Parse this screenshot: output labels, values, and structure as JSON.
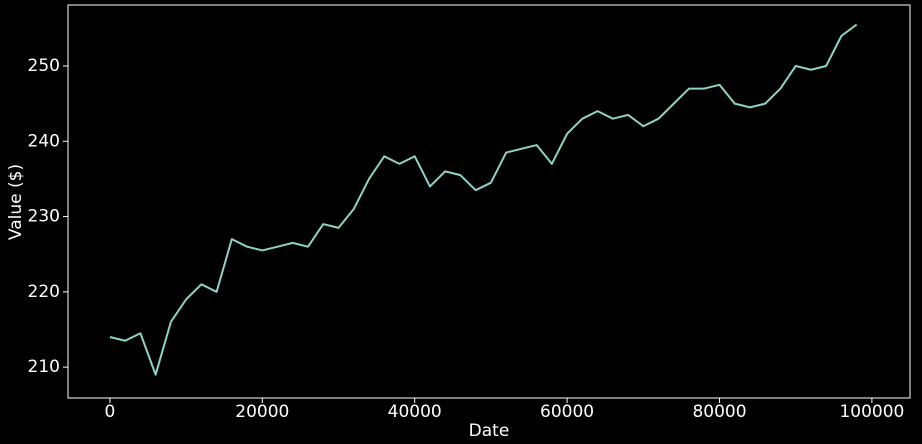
{
  "chart_data": {
    "type": "line",
    "x_label": "Date",
    "y_label": "Value ($)",
    "x": [
      0,
      2000,
      4000,
      6000,
      8000,
      10000,
      12000,
      14000,
      16000,
      18000,
      20000,
      22000,
      24000,
      26000,
      28000,
      30000,
      32000,
      34000,
      36000,
      38000,
      40000,
      42000,
      44000,
      46000,
      48000,
      50000,
      52000,
      54000,
      56000,
      58000,
      60000,
      62000,
      64000,
      66000,
      68000,
      70000,
      72000,
      74000,
      76000,
      78000,
      80000,
      82000,
      84000,
      86000,
      88000,
      90000,
      92000,
      94000,
      96000,
      98000
    ],
    "series": [
      {
        "color": "#8dd3c7",
        "values": [
          214,
          213.5,
          214.5,
          209,
          216,
          219,
          221,
          220,
          227,
          226,
          225.5,
          226,
          226.5,
          226,
          229,
          228.5,
          231,
          235,
          238,
          237,
          238,
          234,
          236,
          235.5,
          233.5,
          234.5,
          238.5,
          239,
          239.5,
          237,
          241,
          243,
          244,
          243,
          243.5,
          242,
          243,
          245,
          247,
          247,
          247.5,
          245,
          244.5,
          245,
          247,
          250,
          249.5,
          250,
          254,
          255.5
        ]
      }
    ],
    "xlim": [
      -5500,
      105000
    ],
    "ylim": [
      205.9,
      258.1
    ],
    "xticks": [
      0,
      20000,
      40000,
      60000,
      80000,
      100000
    ],
    "yticks": [
      210,
      220,
      230,
      240,
      250
    ]
  }
}
